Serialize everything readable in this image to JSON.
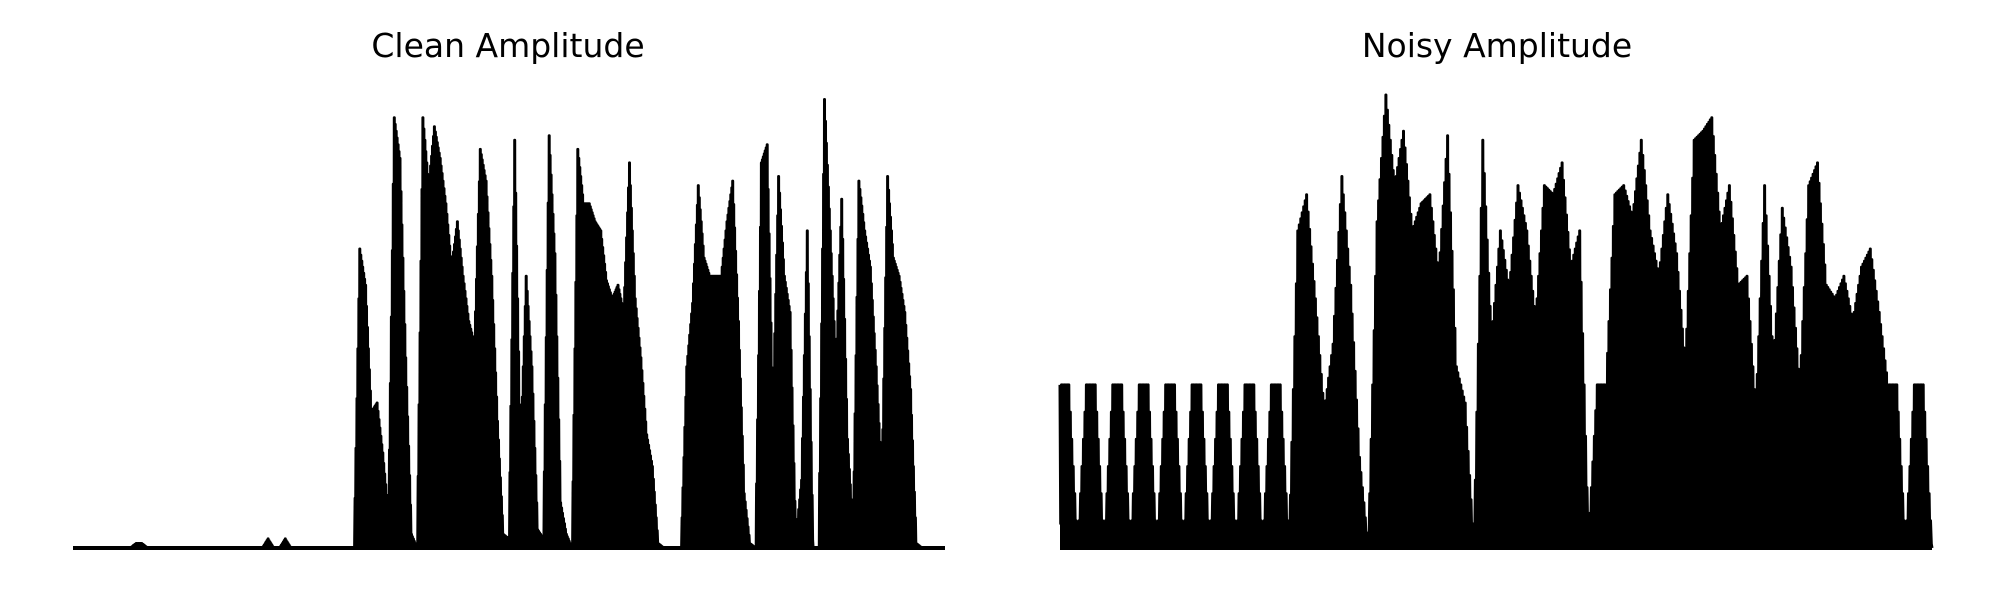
{
  "chart_data": [
    {
      "type": "line",
      "title": "Clean Amplitude",
      "xlabel": "",
      "ylabel": "",
      "grid": false,
      "axes_visible": false,
      "ylim": [
        0,
        1
      ],
      "line_color": "#000000",
      "series": [
        {
          "values": [
            0.0,
            0.0,
            0.0,
            0.0,
            0.0,
            0.0,
            0.0,
            0.0,
            0.0,
            0.0,
            0.0,
            0.01,
            0.01,
            0.0,
            0.0,
            0.0,
            0.0,
            0.0,
            0.0,
            0.0,
            0.0,
            0.0,
            0.0,
            0.0,
            0.0,
            0.0,
            0.0,
            0.0,
            0.0,
            0.0,
            0.0,
            0.0,
            0.0,
            0.0,
            0.02,
            0.0,
            0.0,
            0.02,
            0.0,
            0.0,
            0.0,
            0.0,
            0.0,
            0.0,
            0.0,
            0.0,
            0.0,
            0.0,
            0.0,
            0.0,
            0.66,
            0.58,
            0.3,
            0.32,
            0.21,
            0.07,
            0.95,
            0.86,
            0.42,
            0.03,
            0.0,
            0.95,
            0.8,
            0.93,
            0.86,
            0.76,
            0.62,
            0.72,
            0.6,
            0.5,
            0.45,
            0.88,
            0.81,
            0.6,
            0.28,
            0.03,
            0.02,
            0.9,
            0.2,
            0.6,
            0.4,
            0.04,
            0.02,
            0.91,
            0.65,
            0.1,
            0.03,
            0.0,
            0.88,
            0.76,
            0.76,
            0.72,
            0.7,
            0.59,
            0.55,
            0.58,
            0.52,
            0.85,
            0.55,
            0.42,
            0.25,
            0.18,
            0.01,
            0.0,
            0.0,
            0.0,
            0.0,
            0.4,
            0.54,
            0.8,
            0.64,
            0.6,
            0.6,
            0.6,
            0.72,
            0.81,
            0.5,
            0.12,
            0.01,
            0.0,
            0.85,
            0.89,
            0.3,
            0.82,
            0.6,
            0.52,
            0.02,
            0.15,
            0.7,
            0.0,
            0.0,
            0.99,
            0.7,
            0.4,
            0.77,
            0.24,
            0.04,
            0.81,
            0.7,
            0.62,
            0.4,
            0.15,
            0.82,
            0.64,
            0.6,
            0.52,
            0.35,
            0.01,
            0.0,
            0.0,
            0.0,
            0.0,
            0.0
          ]
        }
      ]
    },
    {
      "type": "line",
      "title": "Noisy Amplitude",
      "xlabel": "",
      "ylabel": "",
      "grid": false,
      "axes_visible": false,
      "ylim": [
        0,
        1
      ],
      "line_color": "#000000",
      "series": [
        {
          "values": [
            0.36,
            0.36,
            0.0,
            0.36,
            0.36,
            0.0,
            0.36,
            0.36,
            0.0,
            0.36,
            0.36,
            0.0,
            0.36,
            0.36,
            0.0,
            0.36,
            0.36,
            0.0,
            0.36,
            0.36,
            0.0,
            0.36,
            0.36,
            0.0,
            0.36,
            0.36,
            0.0,
            0.7,
            0.78,
            0.55,
            0.3,
            0.45,
            0.82,
            0.58,
            0.2,
            0.0,
            0.72,
            1.0,
            0.8,
            0.92,
            0.7,
            0.76,
            0.78,
            0.6,
            0.91,
            0.4,
            0.32,
            0.0,
            0.9,
            0.46,
            0.7,
            0.57,
            0.8,
            0.7,
            0.5,
            0.8,
            0.78,
            0.85,
            0.62,
            0.7,
            0.02,
            0.36,
            0.36,
            0.78,
            0.8,
            0.73,
            0.9,
            0.7,
            0.6,
            0.78,
            0.65,
            0.4,
            0.9,
            0.92,
            0.95,
            0.7,
            0.8,
            0.58,
            0.6,
            0.3,
            0.8,
            0.4,
            0.75,
            0.62,
            0.35,
            0.8,
            0.85,
            0.58,
            0.55,
            0.6,
            0.5,
            0.62,
            0.66,
            0.52,
            0.36,
            0.36,
            0.0,
            0.36,
            0.36,
            0.0
          ]
        }
      ]
    }
  ]
}
